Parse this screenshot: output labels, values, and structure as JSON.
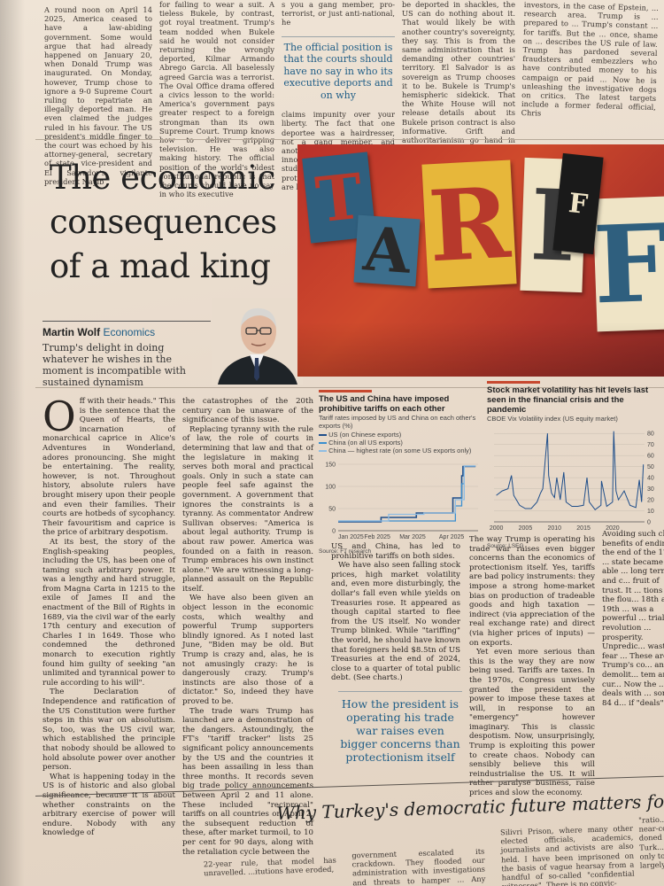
{
  "top": {
    "col1": "A round noon on April 14 2025, America ceased to have a law-abiding government. Some would argue that had already happened on January 20, when Donald Trump was inaugurated. On Monday, however, Trump chose to ignore a 9-0 Supreme Court ruling to repatriate an illegally deported man. He even claimed the judges ruled in his favour. The US president's middle finger to the court was echoed by his attorney-general, secretary of state, vice-president and El Salvador's vigilante president Nayib",
    "col2": "for failing to wear a suit. A tieless Bukele, by contrast, got royal treatment. Trump's team nodded when Bukele said he would not consider returning the wrongly deported, Kilmar Armando Abrego Garcia. All baselessly agreed Garcia was a terrorist. The Oval Office drama offered a civics lesson to the world: America's government pays greater respect to a foreign strongman than its own Supreme Court. Trump knows how to deliver gripping television. He was also making history. The official position of the world's oldest constitutional republic is that the courts should have no say in who its executive",
    "col3_top": "s you a gang member, pro-terrorist, or just anti-national, he",
    "col3_pull": "The official position is that the courts should have no say in who its executive deports and on why",
    "col3_bottom": "claims impunity over your liberty. The fact that one deportee was a hairdresser, not a gang member, and another target was an innocuous op-ed writing student, not a terrorist, is no protection. Trump's lawyers are barely even pre-",
    "col4": "be deported in shackles, the US can do nothing about it. That would likely be with another country's sovereignty, they say. This is from the same administration that is demanding other countries' territory. El Salvador is as sovereign as Trump chooses it to be. Bukele is Trump's hemispheric sidekick. That the White House will not release details about its Bukele prison contract is also informative. Grift and authoritarianism go hand in hand. America's busiest export nowadays are those specialising in border security, drones and paramilitary gear. El Salvador is now a hotspot of shadowy vigilantism. In that respect, the US-El Salvador relationship",
    "col5": "investors, in the case of Epstein, ... research area. Trump is ... prepared to ... Trump's constant ... for tariffs. But the ... once, shame on ... describes the US rule of law. Trump has pardoned several fraudsters and embezzlers who have contributed money to his campaign or paid ... Now he is unleashing the investigative dogs on critics. The latest targets include a former federal official, Chris"
  },
  "article": {
    "headline": "The economic consequences of a mad king",
    "author": "Martin Wolf",
    "section": "Economics",
    "standfirst": "Trump's delight in doing whatever he wishes in the moment is incompatible with sustained dynamism",
    "dropcap": "O",
    "col1_lead": "ff with their heads.\" This is the sentence that the Queen of Hearts, the incarnation of monarchical caprice in Alice's Adventures in Wonderland, adores pronouncing. She might be entertaining. The reality, however, is not. Throughout history, absolute rulers have brought misery upon their people and even their families. Their courts are hotbeds of sycophancy. Their favouritism and caprice is the price of arbitrary despotism.",
    "col1_p2": "At its best, the story of the English-speaking peoples, including the US, has been one of taming such arbitrary power. It was a lengthy and hard struggle, from Magna Carta in 1215 to the exile of James II and the enactment of the Bill of Rights in 1689, via the civil war of the early 17th century and execution of Charles I in 1649. Those who condemned the dethroned monarch to execution rightly found him guilty of seeking \"an unlimited and tyrannical power to rule according to his will\".",
    "col1_p3": "The Declaration of Independence and ratification of the US Constitution were further steps in this war on absolutism. So, too, was the US civil war, which established the principle that nobody should be allowed to hold absolute power over another person.",
    "col1_p4": "What is happening today in the US is of historic and also global significance, because it is about whether constraints on the arbitrary exercise of power will endure. Nobody with any knowledge of",
    "col2_p1": "the catastrophes of the 20th century can be unaware of the significance of this issue.",
    "col2_p2": "Replacing tyranny with the rule of law, the role of courts in determining that law and that of the legislature in making it serves both moral and practical goals. Only in such a state can people feel safe against the government. A government that ignores the constraints is a tyranny. As commentator Andrew Sullivan observes: \"America is about legal authority. Trump is about raw power. America was founded on a faith in reason. Trump embraces his own instinct alone.\" We are witnessing a long-planned assault on the Republic itself.",
    "col2_p3": "We have also been given an object lesson in the economic costs, which wealthy and powerful Trump supporters blindly ignored. As I noted last June, \"Biden may be old. But Trump is crazy and, alas, he is not amusingly crazy: he is dangerously crazy. Trump's instincts are also those of a dictator.\" So, indeed they have proved to be.",
    "col2_p4": "The trade wars Trump has launched are a demonstration of the dangers. Astoundingly, the FT's \"tariff tracker\" lists 25 significant policy announcements by the US and the countries it has been assailing in less than three months. It records seven big trade policy announcements between April 2 and 11 alone. These included \"reciprocal\" tariffs on all countries on April 2, the subsequent reduction of these, after market turmoil, to 10 per cent for 90 days, along with the retaliation cycle between the",
    "col3_p1": "US and China, has led to prohibitive tariffs on both sides.",
    "col3_p2": "We have also seen falling stock prices, high market volatility and, even more disturbingly, the dollar's fall even while yields on Treasuries rose. It appeared as though capital started to flee from the US itself. No wonder Trump blinked. While \"tariffing\" the world, he should have known that foreigners held $8.5tn of US Treasuries at the end of 2024, close to a quarter of total public debt. (See charts.)",
    "pull2": "How the president is operating his trade war raises even bigger concerns than protectionism itself",
    "col4_p1": "The way Trump is operating his trade war raises even bigger concerns than the economics of protectionism itself. Yes, tariffs are bad policy instruments: they impose a strong home-market bias on production of tradeable goods and high taxation — indirect (via appreciation of the real exchange rate) and direct (via higher prices of inputs) — on exports.",
    "col4_p2": "Yet even more serious than this is the way they are now being used. Tariffs are taxes. In the 1970s, Congress unwisely granted the president the power to impose these taxes at will, in response to an \"emergency\" however imaginary. This is classic despotism. Now, unsurprisingly, Trump is exploiting this power to create chaos. Nobody can sensibly believe this will reindustrialise the US. It will rather paralyse business, raise prices and slow the economy.",
    "col5": "Avoiding such ch... benefits of ending ... the end of the 17th ... state became able ... long term and c... fruit of trust. It ... tions of the flou... 18th and 19th ... was a powerful ... trial revolution ... prosperity. Unpredic... waste, fear ... These are ... Trump's co... and demolit... tem are cur... Now the ... deals with ... some 84 d... if \"deals\" a..."
  },
  "art": {
    "letters": [
      "T",
      "A",
      "R",
      "I",
      "F",
      "F"
    ],
    "colors": {
      "background": "#c23a2c",
      "tile_blue": "#2f5f7e",
      "tile_cream": "#efe4c6",
      "tile_yellow": "#e7b73a",
      "tile_black": "#1a1a1a"
    }
  },
  "chart_data": [
    {
      "type": "line",
      "title": "The US and China have imposed prohibitive tariffs on each other",
      "subtitle": "Tariff rates imposed by US and China on each other's exports (%)",
      "legend": [
        "US (on Chinese exports)",
        "China (on all US exports)",
        "China — highest rate (on some US exports only)"
      ],
      "x_ticks": [
        "Jan 2025",
        "Feb 2025",
        "Mar 2025",
        "Apr 2025"
      ],
      "y_ticks": [
        0,
        50,
        100,
        150
      ],
      "ylim": [
        0,
        160
      ],
      "series": [
        {
          "name": "US (on Chinese exports)",
          "color": "#1f4e8a",
          "x": [
            "2025-01-01",
            "2025-02-04",
            "2025-03-04",
            "2025-04-02",
            "2025-04-09",
            "2025-04-10",
            "2025-04-20"
          ],
          "values": [
            20,
            30,
            40,
            74,
            124,
            145,
            145
          ]
        },
        {
          "name": "China (on all US exports)",
          "color": "#3b8fcf",
          "x": [
            "2025-01-01",
            "2025-02-10",
            "2025-03-10",
            "2025-04-04",
            "2025-04-09",
            "2025-04-11",
            "2025-04-20"
          ],
          "values": [
            22,
            22,
            22,
            56,
            106,
            146,
            146
          ]
        },
        {
          "name": "China — highest rate (on some US exports only)",
          "color": "#8fbde3",
          "x": [
            "2025-01-01",
            "2025-02-10",
            "2025-03-10",
            "2025-04-04",
            "2025-04-11",
            "2025-04-20"
          ],
          "values": [
            22,
            37,
            40,
            70,
            146,
            146
          ]
        }
      ],
      "source": "Source: FT research"
    },
    {
      "type": "line",
      "title": "Stock market volatility has hit levels last seen in the financial crisis and the pandemic",
      "subtitle": "CBOE Vix Volatility index (US equity market)",
      "x_ticks": [
        "2000",
        "2005",
        "2010",
        "2015",
        "2020"
      ],
      "y_ticks": [
        0,
        10,
        20,
        30,
        40,
        50,
        60,
        70,
        80
      ],
      "ylim": [
        0,
        85
      ],
      "series": [
        {
          "name": "VIX",
          "color": "#1f4e8a",
          "x": [
            2000,
            2001,
            2002,
            2002.6,
            2003,
            2004,
            2005,
            2006,
            2007,
            2007.6,
            2008,
            2008.8,
            2009,
            2009.5,
            2010,
            2010.4,
            2011,
            2011.6,
            2012,
            2013,
            2014,
            2015,
            2015.6,
            2016,
            2017,
            2018,
            2018.1,
            2019,
            2020,
            2020.2,
            2020.6,
            2021,
            2022,
            2023,
            2024,
            2024.6,
            2025,
            2025.3
          ],
          "values": [
            24,
            28,
            30,
            42,
            24,
            15,
            12,
            12,
            18,
            26,
            30,
            80,
            42,
            26,
            22,
            40,
            20,
            45,
            18,
            14,
            14,
            15,
            40,
            18,
            11,
            15,
            37,
            14,
            18,
            82,
            28,
            20,
            28,
            15,
            13,
            38,
            18,
            52
          ]
        }
      ],
      "source": "Source: LSEG"
    }
  ],
  "footer": {
    "headline": "Why Turkey's democratic future matters for the w",
    "col1": "22-year rule, that model has unravelled. ...itutions have eroded,",
    "col2": "government escalated its crackdown. They flooded our administration with investigations and threats to hamper ... Any university",
    "col3": "Silivri Prison, where many other elected officials, academics, journalists and activists are also held. I have been imprisoned on the basis of vague hearsay from a handful of so-called \"confidential witnesses\". There is no convic-",
    "col4": "\"ratio... near-co... doned f... Turk... only to ... largely ..."
  }
}
